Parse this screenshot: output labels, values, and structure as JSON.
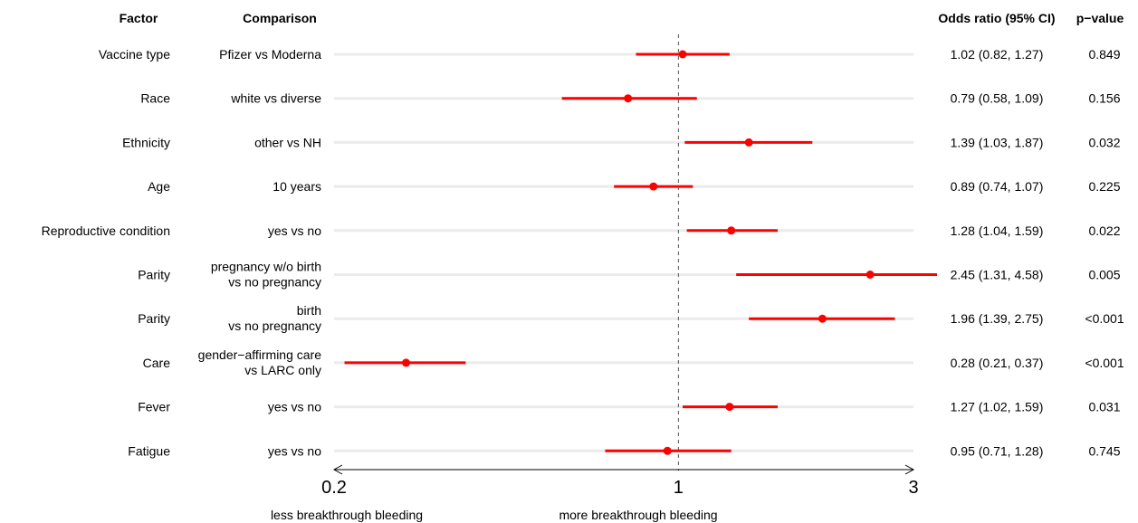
{
  "chart_data": {
    "type": "forest",
    "headers": {
      "factor": "Factor",
      "comparison": "Comparison",
      "or_ci": "Odds ratio (95% CI)",
      "pvalue": "p−value"
    },
    "rows": [
      {
        "factor": "Vaccine type",
        "comparison": [
          "Pfizer vs Moderna"
        ],
        "or": 1.02,
        "lower": 0.82,
        "upper": 1.27,
        "or_text": "1.02 (0.82, 1.27)",
        "p": "0.849"
      },
      {
        "factor": "Race",
        "comparison": [
          "white vs diverse"
        ],
        "or": 0.79,
        "lower": 0.58,
        "upper": 1.09,
        "or_text": "0.79 (0.58, 1.09)",
        "p": "0.156"
      },
      {
        "factor": "Ethnicity",
        "comparison": [
          "other vs NH"
        ],
        "or": 1.39,
        "lower": 1.03,
        "upper": 1.87,
        "or_text": "1.39 (1.03, 1.87)",
        "p": "0.032"
      },
      {
        "factor": "Age",
        "comparison": [
          "10 years"
        ],
        "or": 0.89,
        "lower": 0.74,
        "upper": 1.07,
        "or_text": "0.89 (0.74, 1.07)",
        "p": "0.225"
      },
      {
        "factor": "Reproductive condition",
        "comparison": [
          "yes vs no"
        ],
        "or": 1.28,
        "lower": 1.04,
        "upper": 1.59,
        "or_text": "1.28 (1.04, 1.59)",
        "p": "0.022"
      },
      {
        "factor": "Parity",
        "comparison": [
          "pregnancy w/o birth",
          "vs no pregnancy"
        ],
        "or": 2.45,
        "lower": 1.31,
        "upper": 4.58,
        "or_text": "2.45 (1.31, 4.58)",
        "p": "0.005"
      },
      {
        "factor": "Parity",
        "comparison": [
          "birth",
          "vs no pregnancy"
        ],
        "or": 1.96,
        "lower": 1.39,
        "upper": 2.75,
        "or_text": "1.96 (1.39, 2.75)",
        "p": "<0.001"
      },
      {
        "factor": "Care",
        "comparison": [
          "gender−affirming care",
          "vs LARC only"
        ],
        "or": 0.28,
        "lower": 0.21,
        "upper": 0.37,
        "or_text": "0.28 (0.21, 0.37)",
        "p": "<0.001"
      },
      {
        "factor": "Fever",
        "comparison": [
          "yes vs no"
        ],
        "or": 1.27,
        "lower": 1.02,
        "upper": 1.59,
        "or_text": "1.27 (1.02, 1.59)",
        "p": "0.031"
      },
      {
        "factor": "Fatigue",
        "comparison": [
          "yes vs no"
        ],
        "or": 0.95,
        "lower": 0.71,
        "upper": 1.28,
        "or_text": "0.95 (0.71, 1.28)",
        "p": "0.745"
      }
    ],
    "x_axis": {
      "scale": "log",
      "xlim": [
        0.2,
        3
      ],
      "ticks": [
        0.2,
        1,
        3
      ],
      "tick_labels": [
        "0.2",
        "1",
        "3"
      ],
      "reference_line": 1,
      "left_label": "less breakthrough bleeding",
      "right_label": "more breakthrough bleeding"
    },
    "colors": {
      "estimate": "#ff0000",
      "row_band": "#ebebeb",
      "axis": "#000000",
      "reference": "#555555"
    }
  }
}
